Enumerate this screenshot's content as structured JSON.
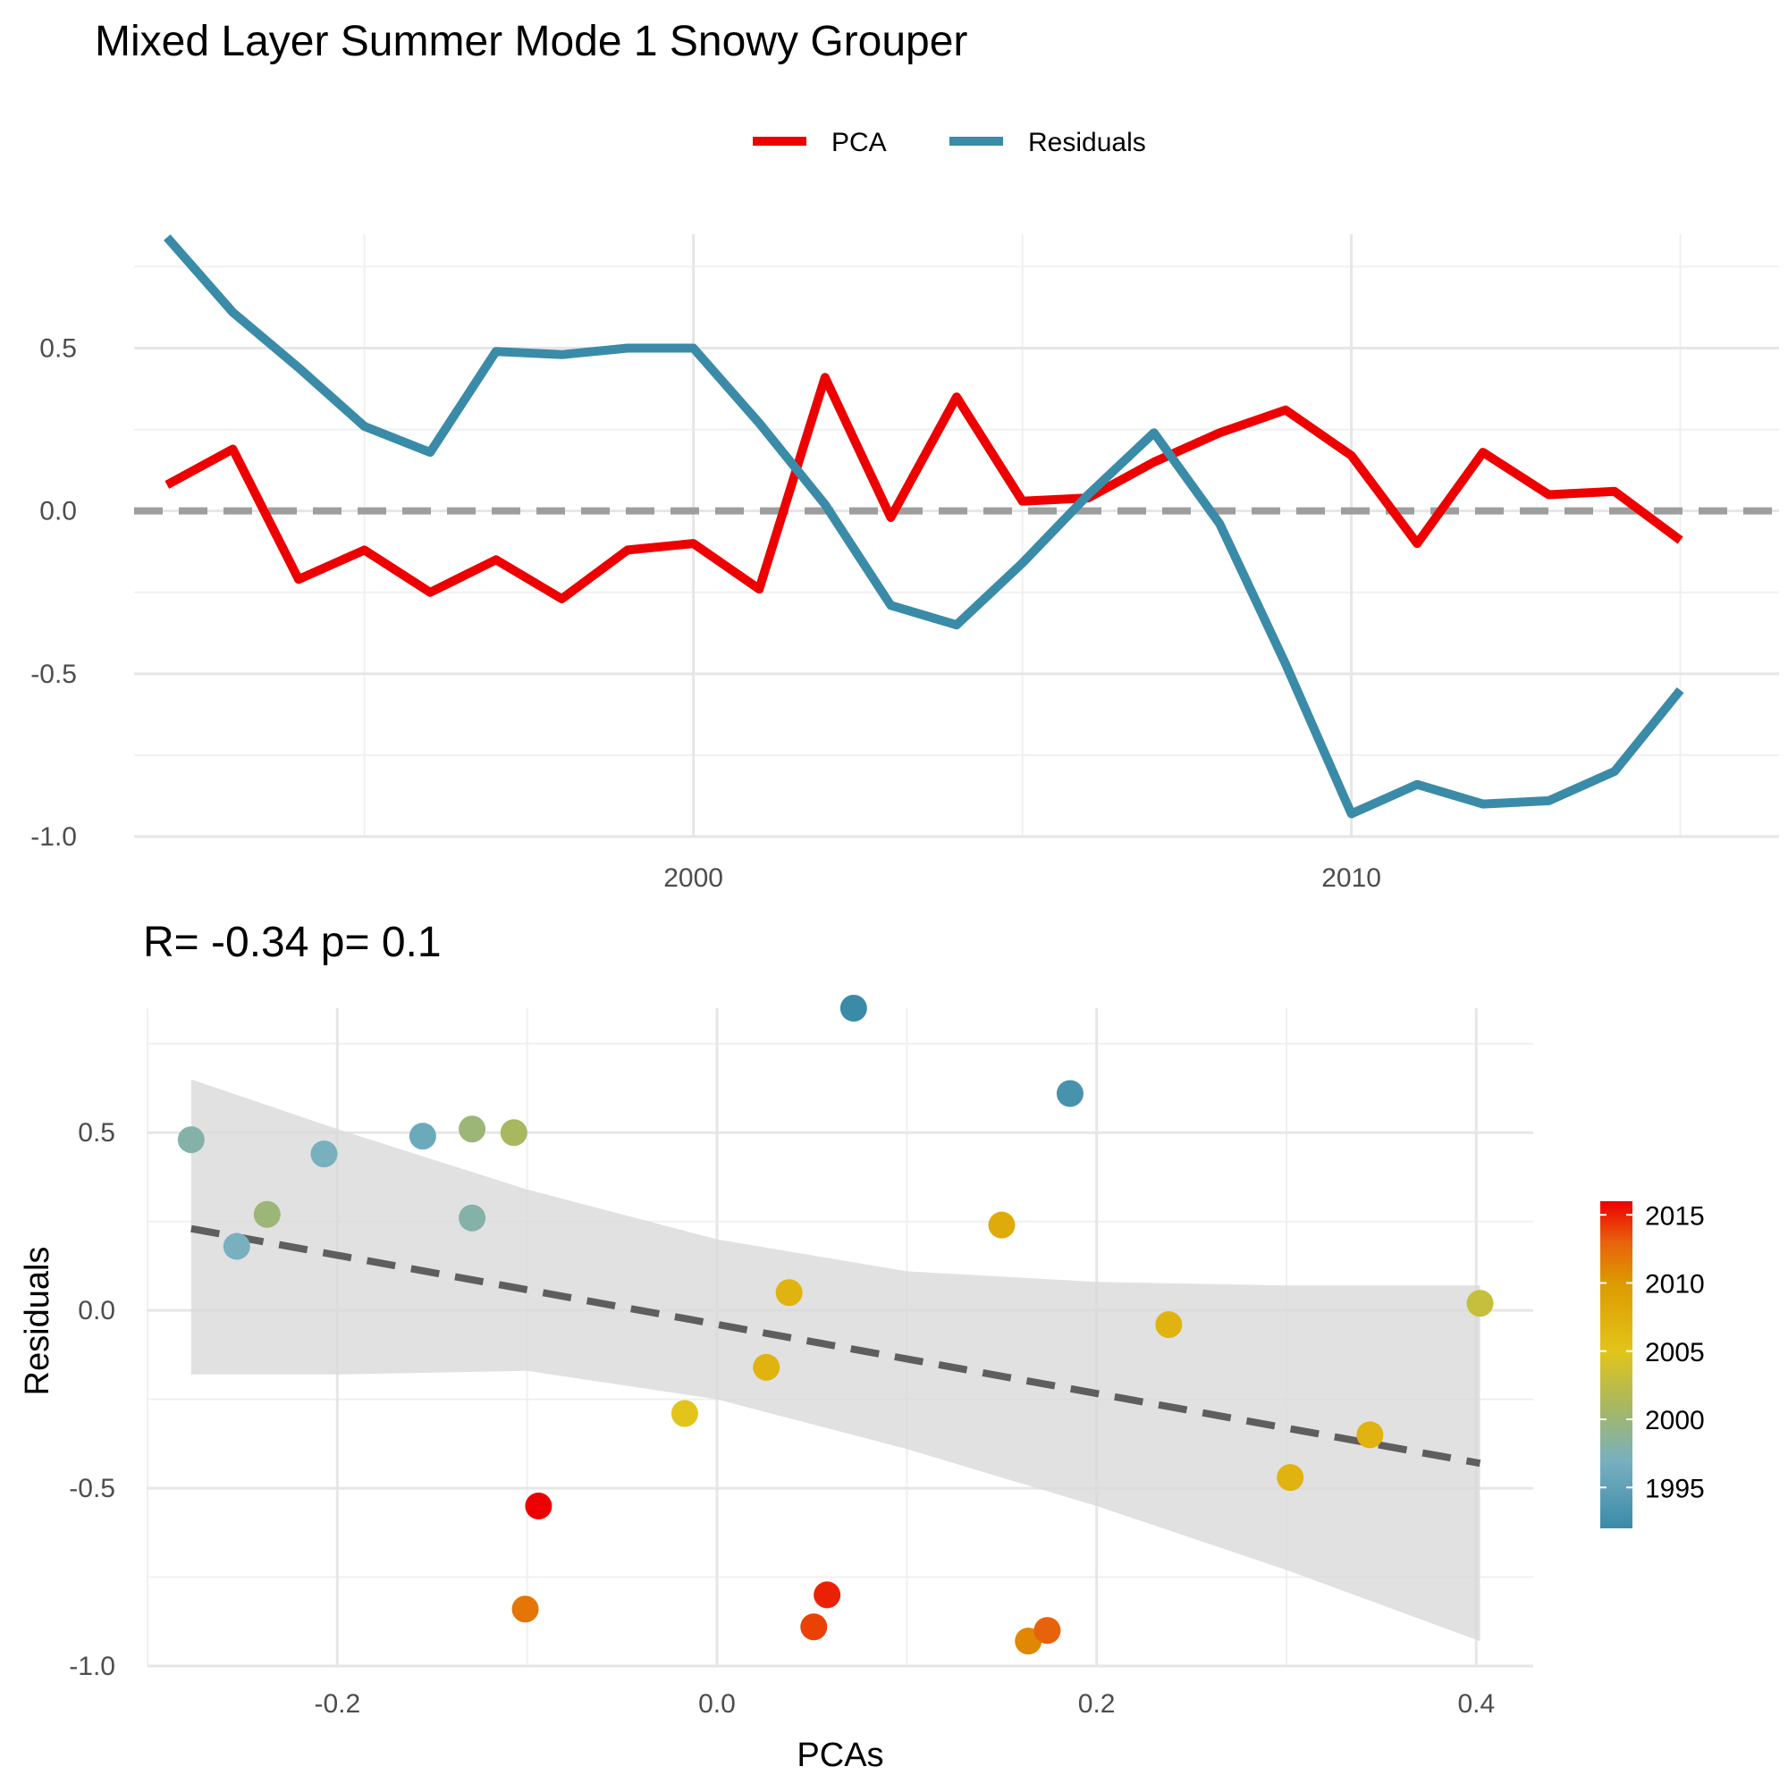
{
  "chart_data": [
    {
      "type": "line",
      "title": "Mixed Layer Summer Mode 1 Snowy Grouper",
      "xlabel": "",
      "ylabel": "",
      "xlim": [
        1991.5,
        2016.5
      ],
      "ylim": [
        -1.0,
        0.85
      ],
      "x_ticks": [
        2000,
        2010
      ],
      "y_ticks": [
        -1.0,
        -0.5,
        0.0,
        0.5
      ],
      "reference_line": {
        "y": 0,
        "style": "dashed",
        "color": "#9e9e9e"
      },
      "legend": {
        "position": "top"
      },
      "x": [
        1992,
        1993,
        1994,
        1995,
        1996,
        1997,
        1998,
        1999,
        2000,
        2001,
        2002,
        2003,
        2004,
        2005,
        2006,
        2007,
        2008,
        2009,
        2010,
        2011,
        2012,
        2013,
        2014,
        2015,
        2016
      ],
      "series": [
        {
          "name": "PCA",
          "color": "#ee0000",
          "values": [
            0.08,
            0.19,
            -0.21,
            -0.12,
            -0.25,
            -0.15,
            -0.27,
            -0.12,
            -0.1,
            -0.24,
            0.41,
            -0.02,
            0.35,
            0.03,
            0.04,
            0.15,
            0.24,
            0.31,
            0.17,
            -0.1,
            0.18,
            0.05,
            0.06,
            -0.09,
            null
          ]
        },
        {
          "name": "Residuals",
          "color": "#3a8ba8",
          "values": [
            0.84,
            0.61,
            0.44,
            0.26,
            0.18,
            0.49,
            0.48,
            0.5,
            0.5,
            0.27,
            0.02,
            -0.29,
            -0.35,
            -0.16,
            0.05,
            0.24,
            -0.04,
            -0.47,
            -0.93,
            -0.84,
            -0.9,
            -0.89,
            -0.8,
            -0.55,
            null
          ]
        }
      ]
    },
    {
      "type": "scatter",
      "title": "R= -0.34  p= 0.1",
      "xlabel": "PCAs",
      "ylabel": "Residuals",
      "xlim": [
        -0.3,
        0.43
      ],
      "ylim": [
        -1.0,
        0.85
      ],
      "x_ticks": [
        -0.2,
        0.0,
        0.2,
        0.4
      ],
      "y_ticks": [
        -1.0,
        -0.5,
        0.0,
        0.5
      ],
      "x_tick_labels": [
        "-0.2",
        "0.0",
        "0.2",
        "0.4"
      ],
      "y_tick_labels": [
        "-1.0",
        "-0.5",
        "0.0",
        "0.5"
      ],
      "points": [
        {
          "x": -0.277,
          "y": 0.48,
          "year": 1998
        },
        {
          "x": -0.253,
          "y": 0.18,
          "year": 1997
        },
        {
          "x": -0.237,
          "y": 0.27,
          "year": 2000
        },
        {
          "x": -0.207,
          "y": 0.44,
          "year": 1997
        },
        {
          "x": -0.155,
          "y": 0.49,
          "year": 1996
        },
        {
          "x": -0.129,
          "y": 0.51,
          "year": 2000
        },
        {
          "x": -0.129,
          "y": 0.26,
          "year": 1998
        },
        {
          "x": -0.107,
          "y": 0.5,
          "year": 2001
        },
        {
          "x": -0.101,
          "y": -0.84,
          "year": 2012
        },
        {
          "x": -0.094,
          "y": -0.55,
          "year": 2016
        },
        {
          "x": -0.017,
          "y": -0.29,
          "year": 2005
        },
        {
          "x": 0.026,
          "y": -0.16,
          "year": 2007
        },
        {
          "x": 0.038,
          "y": 0.05,
          "year": 2007
        },
        {
          "x": 0.051,
          "y": -0.89,
          "year": 2014
        },
        {
          "x": 0.058,
          "y": -0.8,
          "year": 2015
        },
        {
          "x": 0.072,
          "y": 0.85,
          "year": 1992
        },
        {
          "x": 0.15,
          "y": 0.24,
          "year": 2008
        },
        {
          "x": 0.164,
          "y": -0.93,
          "year": 2011
        },
        {
          "x": 0.174,
          "y": -0.9,
          "year": 2013
        },
        {
          "x": 0.186,
          "y": 0.61,
          "year": 1993
        },
        {
          "x": 0.238,
          "y": -0.04,
          "year": 2007
        },
        {
          "x": 0.302,
          "y": -0.47,
          "year": 2007
        },
        {
          "x": 0.344,
          "y": -0.35,
          "year": 2007
        },
        {
          "x": 0.402,
          "y": 0.02,
          "year": 2003
        }
      ],
      "trend_line": {
        "x": [
          -0.277,
          0.402
        ],
        "y": [
          0.23,
          -0.43
        ],
        "style": "dashed",
        "color": "#5e5e5e"
      },
      "confidence_band": {
        "color": "#d9d9d9",
        "x": [
          -0.277,
          -0.2,
          -0.1,
          0.0,
          0.1,
          0.2,
          0.3,
          0.402
        ],
        "upper": [
          0.65,
          0.51,
          0.34,
          0.2,
          0.11,
          0.08,
          0.07,
          0.07
        ],
        "lower": [
          -0.18,
          -0.18,
          -0.17,
          -0.25,
          -0.39,
          -0.55,
          -0.73,
          -0.93
        ]
      },
      "colorbar": {
        "title": "",
        "range": [
          1992,
          2016
        ],
        "ticks": [
          1995,
          2000,
          2005,
          2010,
          2015
        ],
        "tick_labels": [
          "1995",
          "2000",
          "2005",
          "2010",
          "2015"
        ],
        "stops": [
          {
            "value": 1992,
            "color": "#3a8ba8"
          },
          {
            "value": 1997,
            "color": "#79b0c0"
          },
          {
            "value": 2001,
            "color": "#a8b85f"
          },
          {
            "value": 2005,
            "color": "#e3c41a"
          },
          {
            "value": 2010,
            "color": "#dc9a00"
          },
          {
            "value": 2013,
            "color": "#e8620b"
          },
          {
            "value": 2016,
            "color": "#ee0000"
          }
        ]
      }
    }
  ]
}
